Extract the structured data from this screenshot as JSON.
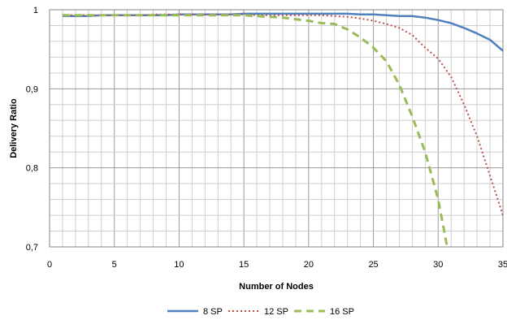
{
  "chart_data": {
    "type": "line",
    "title": "",
    "xlabel": "Number of Nodes",
    "ylabel": "Delivery Ratio",
    "xlim": [
      0,
      35
    ],
    "ylim": [
      0.7,
      1.0
    ],
    "x_ticks": [
      0,
      5,
      10,
      15,
      20,
      25,
      30,
      35
    ],
    "x_tick_labels": [
      "0",
      "5",
      "10",
      "15",
      "20",
      "25",
      "30",
      "35"
    ],
    "y_ticks": [
      0.7,
      0.8,
      0.9,
      1.0
    ],
    "y_tick_labels": [
      "0,7",
      "0,8",
      "0,9",
      "1"
    ],
    "grid": true,
    "legend_position": "bottom",
    "series": [
      {
        "name": "8 SP",
        "color": "#4F81BD",
        "style": "solid",
        "x": [
          1,
          2,
          3,
          4,
          5,
          6,
          7,
          8,
          9,
          10,
          11,
          12,
          13,
          14,
          15,
          16,
          17,
          18,
          19,
          20,
          21,
          22,
          23,
          24,
          25,
          26,
          27,
          28,
          29,
          30,
          31,
          32,
          33,
          34,
          35
        ],
        "values": [
          0.992,
          0.992,
          0.992,
          0.993,
          0.993,
          0.993,
          0.993,
          0.993,
          0.993,
          0.994,
          0.994,
          0.994,
          0.994,
          0.994,
          0.995,
          0.995,
          0.995,
          0.995,
          0.995,
          0.995,
          0.995,
          0.995,
          0.995,
          0.994,
          0.994,
          0.993,
          0.992,
          0.992,
          0.99,
          0.987,
          0.983,
          0.977,
          0.97,
          0.962,
          0.948
        ]
      },
      {
        "name": "12 SP",
        "color": "#C0504D",
        "style": "dotted",
        "x": [
          1,
          2,
          3,
          4,
          5,
          6,
          7,
          8,
          9,
          10,
          11,
          12,
          13,
          14,
          15,
          16,
          17,
          18,
          19,
          20,
          21,
          22,
          23,
          24,
          25,
          26,
          27,
          28,
          29,
          30,
          31,
          32,
          33,
          34,
          35
        ],
        "values": [
          0.993,
          0.993,
          0.993,
          0.993,
          0.993,
          0.993,
          0.993,
          0.994,
          0.994,
          0.994,
          0.994,
          0.994,
          0.994,
          0.994,
          0.994,
          0.993,
          0.993,
          0.993,
          0.993,
          0.993,
          0.993,
          0.992,
          0.991,
          0.989,
          0.986,
          0.982,
          0.977,
          0.968,
          0.952,
          0.938,
          0.915,
          0.88,
          0.84,
          0.79,
          0.74
        ]
      },
      {
        "name": "16 SP",
        "color": "#9BBB59",
        "style": "dashed",
        "x": [
          1,
          2,
          3,
          4,
          5,
          6,
          7,
          8,
          9,
          10,
          11,
          12,
          13,
          14,
          15,
          16,
          17,
          18,
          19,
          20,
          21,
          22,
          23,
          24,
          25,
          26,
          27,
          28,
          29,
          30,
          30.7
        ],
        "values": [
          0.993,
          0.993,
          0.993,
          0.993,
          0.993,
          0.993,
          0.993,
          0.993,
          0.993,
          0.993,
          0.993,
          0.993,
          0.993,
          0.993,
          0.993,
          0.992,
          0.991,
          0.99,
          0.988,
          0.986,
          0.983,
          0.982,
          0.975,
          0.965,
          0.952,
          0.935,
          0.905,
          0.865,
          0.82,
          0.76,
          0.7
        ]
      }
    ]
  }
}
